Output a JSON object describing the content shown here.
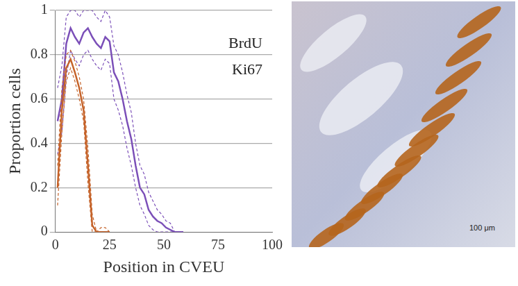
{
  "chart_data": {
    "type": "line",
    "x_label": "Position in CVEU",
    "y_label": "Proportion cells",
    "x": [
      1,
      3,
      5,
      7,
      9,
      11,
      13,
      15,
      17,
      19,
      21,
      23,
      25,
      27,
      29,
      31,
      33,
      35,
      37,
      39,
      41,
      43,
      45,
      47,
      49,
      51,
      53,
      55,
      57,
      59
    ],
    "series": [
      {
        "name": "BrdU",
        "color": "#c5632a",
        "line_style": "solid",
        "values": [
          0.2,
          0.55,
          0.74,
          0.78,
          0.72,
          0.65,
          0.55,
          0.3,
          0.03,
          0,
          0,
          0,
          0,
          null,
          null,
          null,
          null,
          null,
          null,
          null,
          null,
          null,
          null,
          null,
          null,
          null,
          null,
          null,
          null,
          null
        ],
        "lower": [
          0.12,
          0.45,
          0.68,
          0.74,
          0.68,
          0.6,
          0.5,
          0.22,
          0,
          0,
          0,
          0,
          0,
          null,
          null,
          null,
          null,
          null,
          null,
          null,
          null,
          null,
          null,
          null,
          null,
          null,
          null,
          null,
          null,
          null
        ],
        "upper": [
          0.3,
          0.65,
          0.8,
          0.82,
          0.77,
          0.7,
          0.6,
          0.38,
          0.08,
          0,
          0.02,
          0.02,
          0,
          null,
          null,
          null,
          null,
          null,
          null,
          null,
          null,
          null,
          null,
          null,
          null,
          null,
          null,
          null,
          null,
          null
        ]
      },
      {
        "name": "Ki67",
        "color": "#7b4fb8",
        "line_style": "solid",
        "values": [
          0.5,
          0.6,
          0.85,
          0.92,
          0.88,
          0.85,
          0.9,
          0.92,
          0.88,
          0.85,
          0.83,
          0.88,
          0.86,
          0.72,
          0.68,
          0.6,
          0.5,
          0.42,
          0.3,
          0.2,
          0.17,
          0.1,
          0.07,
          0.05,
          0.04,
          0.02,
          0.01,
          0,
          0,
          0
        ],
        "lower": [
          0.35,
          0.45,
          0.7,
          0.82,
          0.78,
          0.75,
          0.8,
          0.82,
          0.78,
          0.75,
          0.73,
          0.78,
          0.76,
          0.6,
          0.55,
          0.48,
          0.38,
          0.3,
          0.2,
          0.12,
          0.08,
          0.03,
          0.01,
          0,
          0,
          0,
          0,
          0,
          0,
          0
        ],
        "upper": [
          0.65,
          0.75,
          0.97,
          1,
          1,
          0.97,
          1,
          1,
          1,
          0.97,
          0.95,
          1,
          0.97,
          0.84,
          0.8,
          0.72,
          0.62,
          0.54,
          0.4,
          0.3,
          0.26,
          0.18,
          0.14,
          0.1,
          0.08,
          0.05,
          0.04,
          0,
          0,
          0
        ]
      }
    ],
    "xlim": [
      0,
      100
    ],
    "xticks": [
      0,
      25,
      50,
      75,
      100
    ],
    "ylim": [
      0,
      1
    ],
    "yticks": [
      0,
      0.2,
      0.4,
      0.6,
      0.8,
      1
    ],
    "grid": true,
    "legend": "top-right"
  },
  "image": {
    "scale_bar": "100 μm"
  }
}
